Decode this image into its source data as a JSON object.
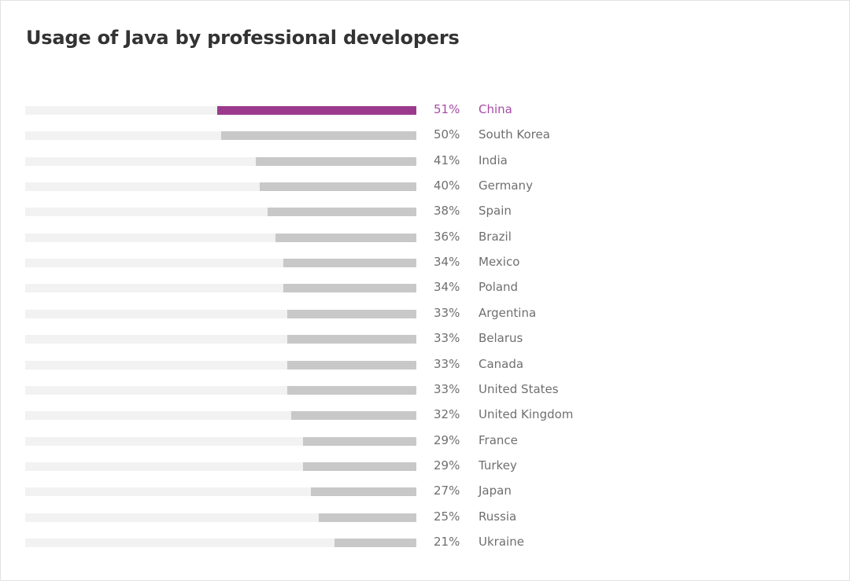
{
  "chart_data": {
    "type": "bar",
    "orientation": "horizontal",
    "title": "Usage of Java by professional developers",
    "xlim": [
      0,
      100
    ],
    "grid": false,
    "highlight_color": "#9b3a8c",
    "bar_color": "#c8c8c8",
    "track_color": "#f2f2f2",
    "highlighted": "China",
    "categories": [
      "China",
      "South Korea",
      "India",
      "Germany",
      "Spain",
      "Brazil",
      "Mexico",
      "Poland",
      "Argentina",
      "Belarus",
      "Canada",
      "United States",
      "United Kingdom",
      "France",
      "Turkey",
      "Japan",
      "Russia",
      "Ukraine"
    ],
    "values": [
      51,
      50,
      41,
      40,
      38,
      36,
      34,
      34,
      33,
      33,
      33,
      33,
      32,
      29,
      29,
      27,
      25,
      21
    ],
    "value_labels": [
      "51%",
      "50%",
      "41%",
      "40%",
      "38%",
      "36%",
      "34%",
      "34%",
      "33%",
      "33%",
      "33%",
      "33%",
      "32%",
      "29%",
      "29%",
      "27%",
      "25%",
      "21%"
    ]
  }
}
